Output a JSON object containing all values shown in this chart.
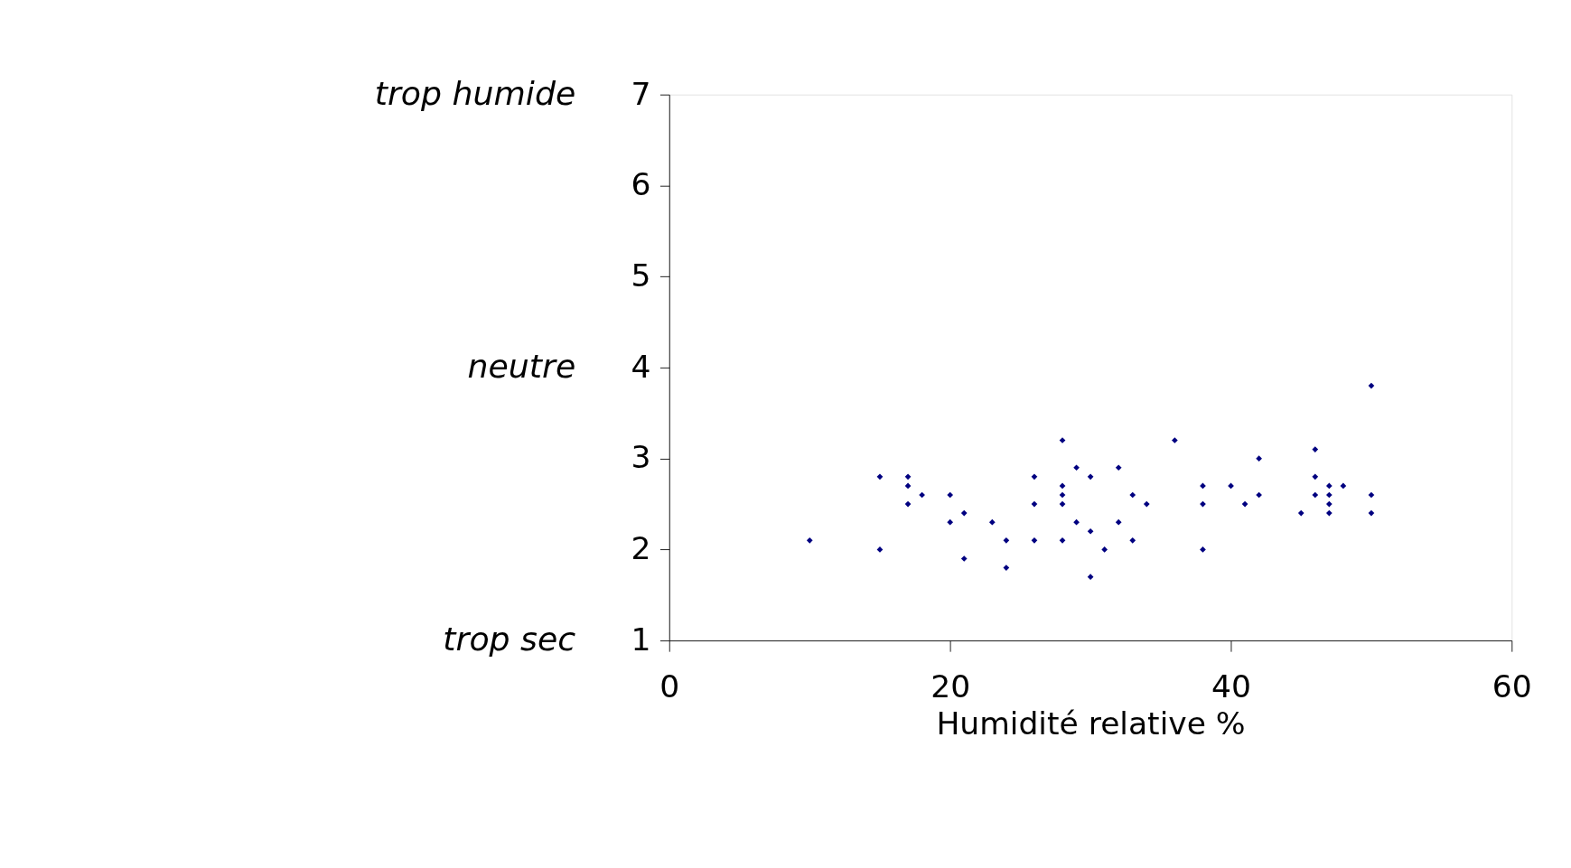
{
  "chart_data": {
    "type": "scatter",
    "xlabel": "Humidité relative %",
    "x": [
      10,
      15,
      15,
      17,
      17,
      17,
      18,
      20,
      20,
      21,
      21,
      23,
      24,
      24,
      26,
      26,
      26,
      28,
      28,
      28,
      28,
      28,
      29,
      29,
      30,
      30,
      30,
      31,
      32,
      32,
      33,
      33,
      34,
      36,
      38,
      38,
      38,
      40,
      41,
      42,
      42,
      45,
      46,
      46,
      46,
      47,
      47,
      47,
      47,
      48,
      50,
      50,
      50
    ],
    "series": [
      {
        "color": "#000080",
        "values": [
          2.1,
          2.8,
          2.0,
          2.8,
          2.7,
          2.5,
          2.6,
          2.6,
          2.3,
          2.4,
          1.9,
          2.3,
          2.1,
          1.8,
          2.8,
          2.5,
          2.1,
          3.2,
          2.7,
          2.6,
          2.5,
          2.1,
          2.9,
          2.3,
          2.8,
          2.2,
          1.7,
          2.0,
          2.9,
          2.3,
          2.6,
          2.1,
          2.5,
          3.2,
          2.7,
          2.5,
          2.0,
          2.7,
          2.5,
          3.0,
          2.6,
          2.4,
          3.1,
          2.8,
          2.6,
          2.7,
          2.6,
          2.5,
          2.4,
          2.7,
          3.8,
          2.6,
          2.4
        ]
      }
    ],
    "xlim": [
      0,
      60
    ],
    "xticks": [
      0,
      20,
      40,
      60
    ],
    "ylim": [
      1,
      7
    ],
    "yticks": [
      1,
      2,
      3,
      4,
      5,
      6,
      7
    ],
    "marker": "diamond",
    "grid": false,
    "annotations": [
      "trop humide",
      "neutre",
      "trop sec"
    ]
  }
}
